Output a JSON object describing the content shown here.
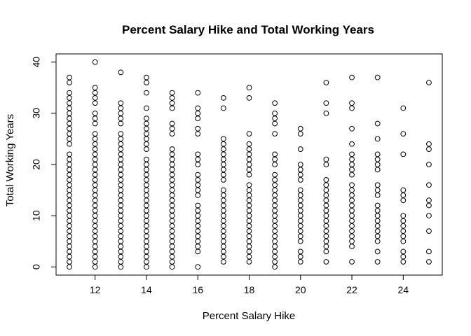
{
  "chart_data": {
    "type": "scatter",
    "title": "Percent Salary Hike and Total Working Years",
    "xlabel": "Percent Salary Hike",
    "ylabel": "Total Working Years",
    "xlim": [
      10.48,
      25.52
    ],
    "ylim": [
      -1.6,
      41.6
    ],
    "xticks": [
      12,
      14,
      16,
      18,
      20,
      22,
      24
    ],
    "yticks": [
      0,
      10,
      20,
      30,
      40
    ],
    "grid": false,
    "legend": "none",
    "marker": "open-circle",
    "colors": {
      "marker": "#000000",
      "axis": "#000000",
      "background": "#ffffff"
    },
    "series": [
      {
        "points": [
          {
            "x": 11,
            "y": [
              0,
              1,
              2,
              3,
              4,
              5,
              6,
              7,
              8,
              9,
              10,
              11,
              12,
              13,
              14,
              15,
              16,
              17,
              18,
              19,
              20,
              21,
              22,
              24,
              25,
              26,
              27,
              28,
              29,
              30,
              31,
              32,
              33,
              34,
              36,
              37
            ]
          },
          {
            "x": 12,
            "y": [
              0,
              1,
              2,
              3,
              4,
              5,
              6,
              7,
              8,
              9,
              10,
              11,
              12,
              13,
              14,
              15,
              16,
              17,
              18,
              19,
              20,
              21,
              22,
              23,
              24,
              25,
              26,
              28,
              29,
              30,
              32,
              33,
              34,
              35,
              40
            ]
          },
          {
            "x": 13,
            "y": [
              0,
              1,
              2,
              3,
              4,
              5,
              6,
              7,
              8,
              9,
              10,
              11,
              12,
              13,
              14,
              15,
              16,
              17,
              18,
              19,
              20,
              21,
              22,
              23,
              24,
              25,
              26,
              28,
              29,
              30,
              31,
              32,
              38
            ]
          },
          {
            "x": 14,
            "y": [
              0,
              1,
              2,
              3,
              4,
              5,
              6,
              7,
              8,
              9,
              10,
              11,
              12,
              13,
              14,
              15,
              16,
              17,
              18,
              19,
              20,
              21,
              23,
              24,
              25,
              26,
              27,
              28,
              29,
              31,
              34,
              36,
              37
            ]
          },
          {
            "x": 15,
            "y": [
              0,
              1,
              2,
              3,
              4,
              5,
              6,
              7,
              8,
              9,
              10,
              11,
              12,
              13,
              14,
              15,
              16,
              17,
              18,
              19,
              20,
              21,
              22,
              23,
              26,
              27,
              28,
              31,
              32,
              33,
              34
            ]
          },
          {
            "x": 16,
            "y": [
              0,
              3,
              4,
              5,
              6,
              7,
              8,
              9,
              10,
              11,
              12,
              14,
              15,
              16,
              17,
              18,
              20,
              21,
              22,
              26,
              27,
              29,
              30,
              31,
              34
            ]
          },
          {
            "x": 17,
            "y": [
              1,
              2,
              3,
              4,
              5,
              6,
              7,
              8,
              9,
              10,
              11,
              12,
              13,
              14,
              15,
              17,
              18,
              19,
              20,
              21,
              22,
              23,
              24,
              25,
              31,
              33
            ]
          },
          {
            "x": 18,
            "y": [
              1,
              2,
              3,
              4,
              5,
              6,
              7,
              8,
              9,
              10,
              11,
              12,
              13,
              14,
              15,
              16,
              18,
              19,
              20,
              21,
              22,
              23,
              24,
              26,
              33,
              35
            ]
          },
          {
            "x": 19,
            "y": [
              0,
              1,
              2,
              3,
              4,
              5,
              6,
              7,
              8,
              9,
              10,
              11,
              12,
              13,
              14,
              15,
              16,
              17,
              18,
              20,
              21,
              22,
              26,
              28,
              29,
              30,
              32
            ]
          },
          {
            "x": 20,
            "y": [
              1,
              2,
              3,
              5,
              6,
              7,
              8,
              9,
              10,
              11,
              12,
              13,
              14,
              15,
              17,
              18,
              19,
              20,
              23,
              26,
              27
            ]
          },
          {
            "x": 21,
            "y": [
              1,
              3,
              4,
              5,
              6,
              7,
              8,
              9,
              10,
              11,
              12,
              13,
              14,
              15,
              16,
              17,
              20,
              21,
              30,
              32,
              36
            ]
          },
          {
            "x": 22,
            "y": [
              1,
              4,
              5,
              6,
              7,
              8,
              9,
              10,
              11,
              12,
              13,
              14,
              15,
              16,
              18,
              19,
              20,
              21,
              22,
              24,
              27,
              31,
              32,
              37
            ]
          },
          {
            "x": 23,
            "y": [
              1,
              3,
              5,
              6,
              7,
              8,
              9,
              10,
              11,
              12,
              14,
              15,
              16,
              19,
              20,
              21,
              22,
              25,
              28,
              37
            ]
          },
          {
            "x": 24,
            "y": [
              1,
              2,
              3,
              5,
              6,
              7,
              8,
              9,
              10,
              13,
              14,
              15,
              22,
              26,
              31
            ]
          },
          {
            "x": 25,
            "y": [
              1,
              3,
              7,
              10,
              12,
              13,
              16,
              20,
              23,
              24,
              36
            ]
          }
        ]
      }
    ]
  }
}
